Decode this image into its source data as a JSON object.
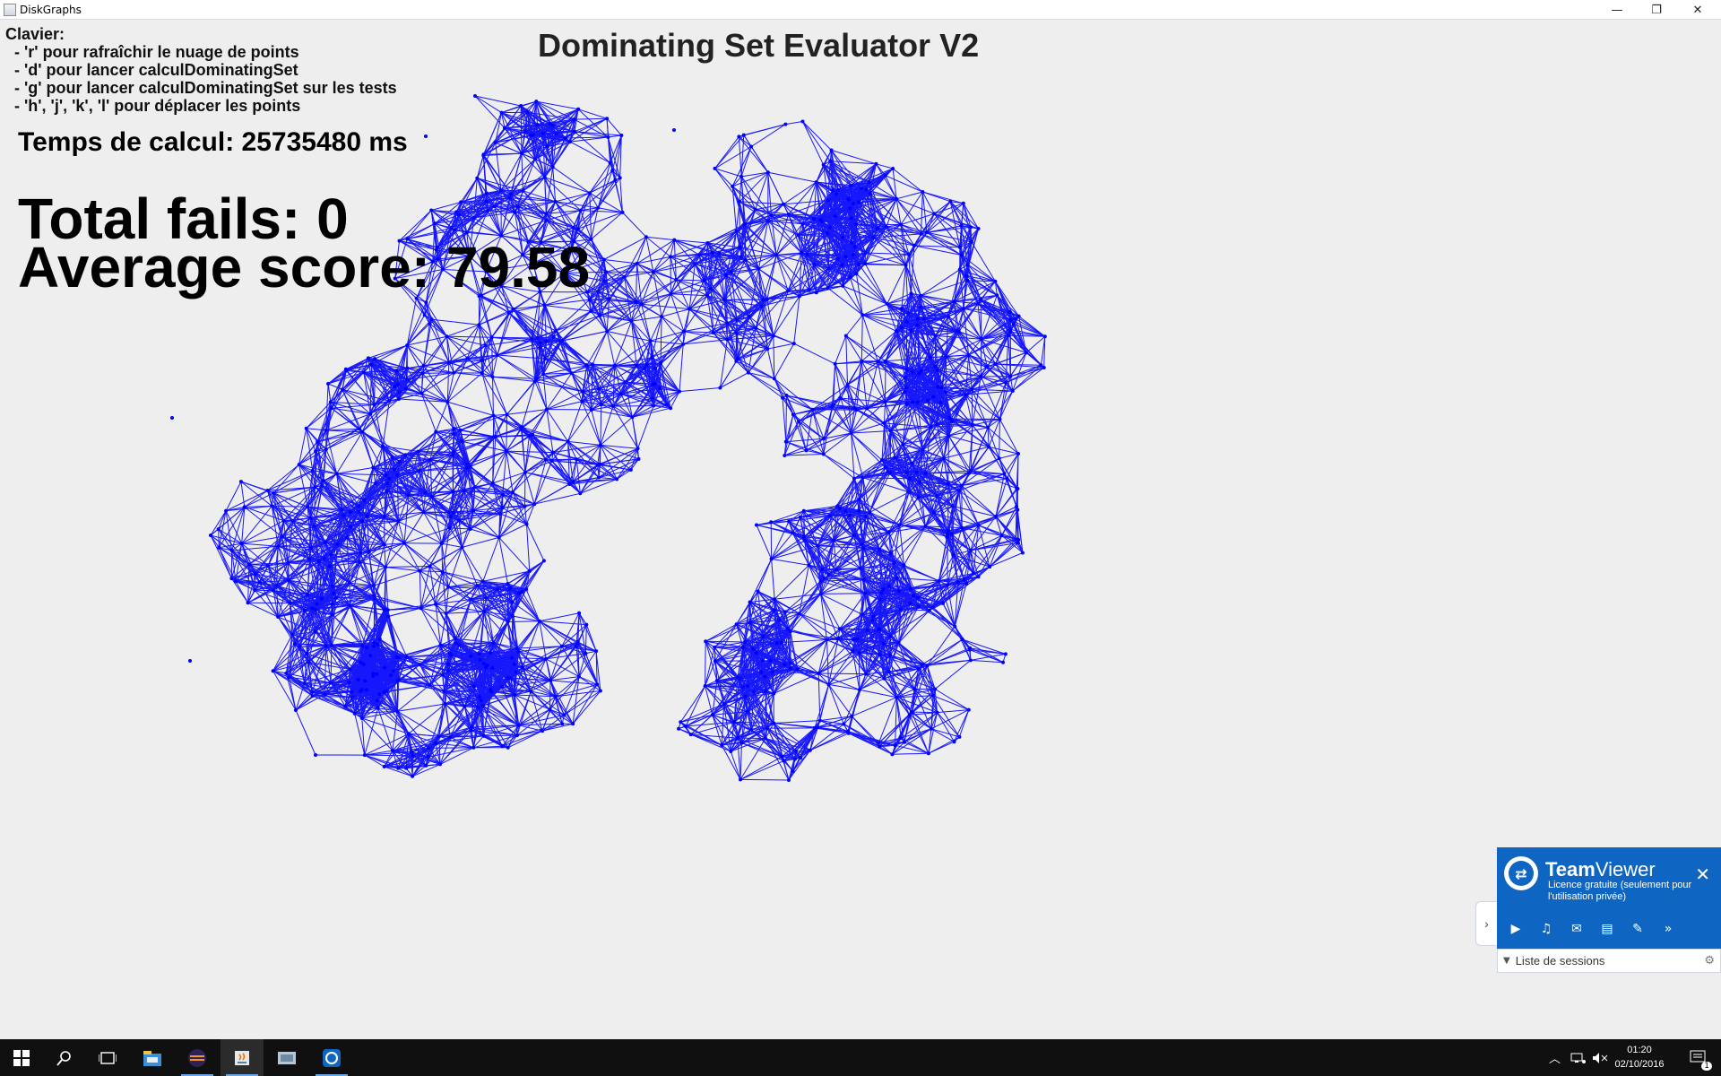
{
  "window": {
    "title": "DiskGraphs",
    "minimize_glyph": "—",
    "restore_glyph": "❐",
    "close_glyph": "✕"
  },
  "canvas": {
    "keyboard_help": [
      "Clavier:",
      "  - 'r' pour rafraîchir le nuage de points",
      "  - 'd' pour lancer calculDominatingSet",
      "  - 'g' pour lancer calculDominatingSet sur les tests",
      "  - 'h', 'j', 'k', 'l' pour déplacer les points"
    ],
    "app_title": "Dominating Set Evaluator V2",
    "compute_time": "Temps de calcul: 25735480 ms",
    "total_fails": "Total fails: 0",
    "average_score": "Average score: 79.58",
    "graph_color": "#0000ff"
  },
  "teamviewer": {
    "brand_bold": "Team",
    "brand_rest": "Viewer",
    "licence": "Licence gratuite (seulement pour l'utilisation privée)",
    "close_glyph": "✕",
    "tab_glyph": "›",
    "tools": [
      "video-icon",
      "headset-icon",
      "chat-icon",
      "file-icon",
      "wrench-icon",
      "more-icon"
    ],
    "sessions_label": "Liste de sessions",
    "accent": "#0e66c2"
  },
  "taskbar": {
    "time": "01:20",
    "date": "02/10/2016",
    "notification_count": "1"
  }
}
